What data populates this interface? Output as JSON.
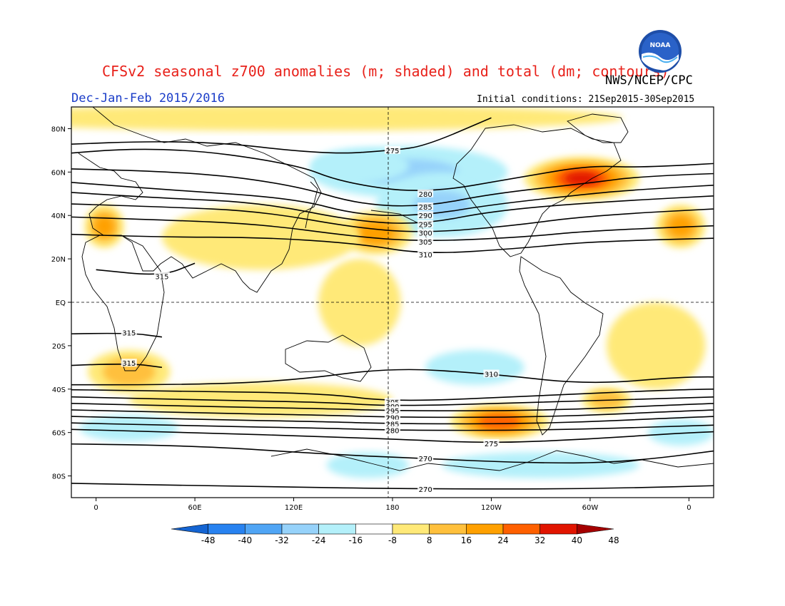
{
  "title": "CFSv2 seasonal z700 anomalies (m; shaded) and total (dm; contours)",
  "agency": "NWS/NCEP/CPC",
  "season": "Dec-Jan-Feb 2015/2016",
  "initial_conditions": "Initial conditions: 21Sep2015-30Sep2015",
  "logo_text": "NOAA",
  "colors": {
    "title": "#e8211a",
    "season": "#1a3cc8",
    "scale": [
      "#1464d2",
      "#2882f0",
      "#50a5f5",
      "#96d2fa",
      "#b4f0fa",
      "#ffffff",
      "#ffe978",
      "#ffc03c",
      "#ffa000",
      "#ff6000",
      "#e11400",
      "#a50000"
    ]
  },
  "axes": {
    "lon_labels": [
      "0",
      "60E",
      "120E",
      "180",
      "120W",
      "60W",
      "0"
    ],
    "lat_labels": [
      "80N",
      "60N",
      "40N",
      "20N",
      "EQ",
      "20S",
      "40S",
      "60S",
      "80S"
    ]
  },
  "colorbar": {
    "labels": [
      "-48",
      "-40",
      "-32",
      "-24",
      "-16",
      "-8",
      "8",
      "16",
      "24",
      "32",
      "40",
      "48"
    ]
  },
  "anomalies": [
    {
      "lon": 190,
      "lat": 60,
      "rx": 60,
      "ry": 12,
      "value": -28
    },
    {
      "lon": 210,
      "lat": 45,
      "rx": 40,
      "ry": 15,
      "value": -24
    },
    {
      "lon": 160,
      "lat": 63,
      "rx": 30,
      "ry": 8,
      "value": -12
    },
    {
      "lon": 295,
      "lat": 57,
      "rx": 35,
      "ry": 10,
      "value": 42
    },
    {
      "lon": 170,
      "lat": 32,
      "rx": 22,
      "ry": 10,
      "value": 28
    },
    {
      "lon": 5,
      "lat": 35,
      "rx": 12,
      "ry": 10,
      "value": 26
    },
    {
      "lon": 355,
      "lat": 35,
      "rx": 15,
      "ry": 10,
      "value": 26
    },
    {
      "lon": 245,
      "lat": -55,
      "rx": 30,
      "ry": 8,
      "value": 38
    },
    {
      "lon": 310,
      "lat": -45,
      "rx": 15,
      "ry": 6,
      "value": 20
    },
    {
      "lon": 120,
      "lat": 85,
      "rx": 200,
      "ry": 6,
      "value": 12
    },
    {
      "lon": 100,
      "lat": 30,
      "rx": 60,
      "ry": 15,
      "value": 10
    },
    {
      "lon": 20,
      "lat": -32,
      "rx": 25,
      "ry": 10,
      "value": 18
    },
    {
      "lon": 100,
      "lat": -45,
      "rx": 80,
      "ry": 8,
      "value": 14
    },
    {
      "lon": 340,
      "lat": -20,
      "rx": 30,
      "ry": 20,
      "value": 12
    },
    {
      "lon": 160,
      "lat": 0,
      "rx": 25,
      "ry": 20,
      "value": 10
    },
    {
      "lon": 20,
      "lat": -58,
      "rx": 30,
      "ry": 6,
      "value": -12
    },
    {
      "lon": 230,
      "lat": -30,
      "rx": 30,
      "ry": 8,
      "value": -14
    },
    {
      "lon": 270,
      "lat": -75,
      "rx": 60,
      "ry": 6,
      "value": -10
    },
    {
      "lon": 165,
      "lat": -75,
      "rx": 25,
      "ry": 6,
      "value": -10
    },
    {
      "lon": 355,
      "lat": -60,
      "rx": 20,
      "ry": 6,
      "value": -10
    }
  ],
  "contours": [
    {
      "label": "275",
      "points": [
        [
          -45,
          72
        ],
        [
          60,
          75
        ],
        [
          140,
          68
        ],
        [
          180,
          70
        ],
        [
          200,
          72
        ],
        [
          240,
          85
        ]
      ]
    },
    {
      "label": "280",
      "points": [
        [
          -45,
          67
        ],
        [
          40,
          72
        ],
        [
          120,
          64
        ],
        [
          150,
          55
        ],
        [
          200,
          50
        ],
        [
          260,
          58
        ],
        [
          300,
          63
        ],
        [
          330,
          62
        ],
        [
          400,
          65
        ]
      ]
    },
    {
      "label": "285",
      "points": [
        [
          -45,
          62
        ],
        [
          60,
          60
        ],
        [
          120,
          54
        ],
        [
          160,
          45
        ],
        [
          200,
          44
        ],
        [
          240,
          50
        ],
        [
          300,
          55
        ],
        [
          330,
          58
        ],
        [
          400,
          60
        ]
      ]
    },
    {
      "label": "290",
      "points": [
        [
          -45,
          57
        ],
        [
          40,
          52
        ],
        [
          120,
          48
        ],
        [
          160,
          40
        ],
        [
          200,
          40
        ],
        [
          240,
          45
        ],
        [
          300,
          50
        ],
        [
          330,
          52
        ],
        [
          400,
          55
        ]
      ]
    },
    {
      "label": "295",
      "points": [
        [
          -45,
          52
        ],
        [
          40,
          48
        ],
        [
          100,
          46
        ],
        [
          160,
          37
        ],
        [
          200,
          36
        ],
        [
          240,
          42
        ],
        [
          300,
          46
        ],
        [
          400,
          50
        ]
      ]
    },
    {
      "label": "300",
      "points": [
        [
          -45,
          46
        ],
        [
          40,
          44
        ],
        [
          100,
          42
        ],
        [
          160,
          34
        ],
        [
          200,
          32
        ],
        [
          250,
          35
        ],
        [
          300,
          40
        ],
        [
          400,
          44
        ]
      ]
    },
    {
      "label": "305",
      "points": [
        [
          -45,
          40
        ],
        [
          40,
          38
        ],
        [
          100,
          36
        ],
        [
          160,
          30
        ],
        [
          200,
          28
        ],
        [
          260,
          30
        ],
        [
          300,
          33
        ],
        [
          400,
          36
        ]
      ]
    },
    {
      "label": "310",
      "points": [
        [
          -45,
          32
        ],
        [
          40,
          30
        ],
        [
          100,
          30
        ],
        [
          160,
          27
        ],
        [
          200,
          22
        ],
        [
          260,
          25
        ],
        [
          300,
          28
        ],
        [
          400,
          30
        ]
      ]
    },
    {
      "label": "315",
      "points": [
        [
          0,
          15
        ],
        [
          40,
          12
        ],
        [
          60,
          18
        ]
      ]
    },
    {
      "label": "315",
      "points": [
        [
          -45,
          -15
        ],
        [
          20,
          -14
        ],
        [
          40,
          -16
        ]
      ]
    },
    {
      "label": "315",
      "points": [
        [
          -45,
          -30
        ],
        [
          20,
          -28
        ],
        [
          40,
          -30
        ]
      ]
    },
    {
      "label": "310",
      "points": [
        [
          -45,
          -38
        ],
        [
          60,
          -38
        ],
        [
          120,
          -36
        ],
        [
          180,
          -30
        ],
        [
          240,
          -33
        ],
        [
          300,
          -38
        ],
        [
          360,
          -34
        ],
        [
          400,
          -35
        ]
      ]
    },
    {
      "label": "305",
      "points": [
        [
          -45,
          -40
        ],
        [
          60,
          -41
        ],
        [
          140,
          -42
        ],
        [
          180,
          -46
        ],
        [
          270,
          -43
        ],
        [
          360,
          -40
        ],
        [
          400,
          -40
        ]
      ]
    },
    {
      "label": "300",
      "points": [
        [
          -45,
          -43
        ],
        [
          60,
          -45
        ],
        [
          140,
          -46
        ],
        [
          180,
          -48
        ],
        [
          270,
          -46
        ],
        [
          360,
          -44
        ],
        [
          400,
          -43
        ]
      ]
    },
    {
      "label": "295",
      "points": [
        [
          -45,
          -46
        ],
        [
          60,
          -48
        ],
        [
          140,
          -49
        ],
        [
          180,
          -50
        ],
        [
          270,
          -50
        ],
        [
          360,
          -47
        ],
        [
          400,
          -46
        ]
      ]
    },
    {
      "label": "290",
      "points": [
        [
          -45,
          -49
        ],
        [
          60,
          -51
        ],
        [
          140,
          -52
        ],
        [
          180,
          -53
        ],
        [
          270,
          -53
        ],
        [
          360,
          -50
        ],
        [
          400,
          -49
        ]
      ]
    },
    {
      "label": "285",
      "points": [
        [
          -45,
          -52
        ],
        [
          60,
          -54
        ],
        [
          140,
          -55
        ],
        [
          180,
          -56
        ],
        [
          270,
          -56
        ],
        [
          360,
          -53
        ],
        [
          400,
          -52
        ]
      ]
    },
    {
      "label": "280",
      "points": [
        [
          -45,
          -55
        ],
        [
          60,
          -57
        ],
        [
          140,
          -58
        ],
        [
          180,
          -59
        ],
        [
          270,
          -59
        ],
        [
          360,
          -57
        ],
        [
          400,
          -56
        ]
      ]
    },
    {
      "label": "275",
      "points": [
        [
          -45,
          -58
        ],
        [
          60,
          -60
        ],
        [
          140,
          -62
        ],
        [
          180,
          -63
        ],
        [
          240,
          -65
        ],
        [
          300,
          -63
        ],
        [
          360,
          -60
        ],
        [
          400,
          -59
        ]
      ]
    },
    {
      "label": "270",
      "points": [
        [
          -45,
          -65
        ],
        [
          60,
          -66
        ],
        [
          140,
          -70
        ],
        [
          200,
          -72
        ],
        [
          260,
          -74
        ],
        [
          320,
          -74
        ],
        [
          400,
          -66
        ]
      ]
    },
    {
      "label": "270",
      "points": [
        [
          -45,
          -83
        ],
        [
          100,
          -85
        ],
        [
          200,
          -86
        ],
        [
          300,
          -86
        ],
        [
          400,
          -84
        ]
      ]
    }
  ]
}
